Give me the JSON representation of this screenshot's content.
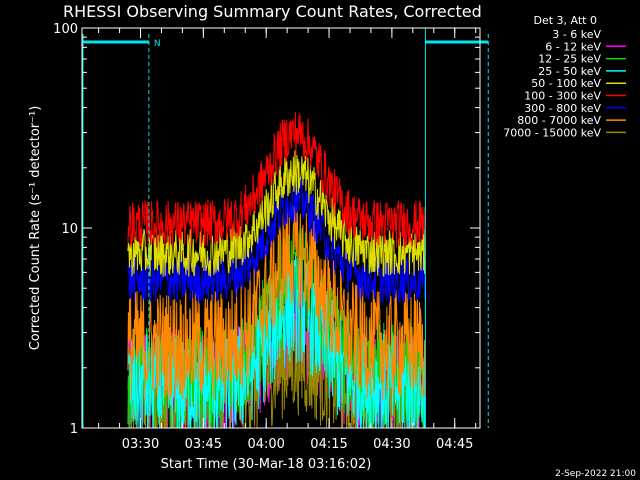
{
  "chart_data": {
    "type": "line",
    "title": "RHESSI Observing Summary Count Rates, Corrected",
    "xlabel": "Start Time (30-Mar-18 03:16:02)",
    "ylabel": "Corrected Count Rate (s⁻¹ detector⁻¹)",
    "yscale": "log",
    "ylim": [
      1,
      100
    ],
    "xlim_minutes_from_start": [
      0,
      95
    ],
    "y_ticks": [
      "1",
      "10",
      "100"
    ],
    "x_ticks": [
      "03:30",
      "03:45",
      "04:00",
      "04:15",
      "04:30",
      "04:45"
    ],
    "x_tick_values": [
      "03:30",
      "03:45",
      "04:00",
      "04:15",
      "04:30",
      "04:45"
    ],
    "legend_title": "Det 3, Att 0",
    "legend_position": "right",
    "date_stamp": "2-Sep-2022 21:00",
    "flags": {
      "bar_color": "#00e5ee",
      "night_label": "N",
      "night_interval": [
        "03:16",
        "03:32"
      ],
      "day_interval": [
        "04:38",
        "04:53"
      ]
    },
    "series": [
      {
        "name": "3 - 6 keV",
        "color": "#000000",
        "baseline": 1.6,
        "peak": 3.0
      },
      {
        "name": "6 - 12 keV",
        "color": "#ff00ff",
        "baseline": 1.7,
        "peak": 3.2
      },
      {
        "name": "12 - 25 keV",
        "color": "#00dd00",
        "baseline": 1.8,
        "peak": 5.5
      },
      {
        "name": "25 - 50 keV",
        "color": "#00ffff",
        "baseline": 1.6,
        "peak": 4.0
      },
      {
        "name": "50 - 100 keV",
        "color": "#dddd00",
        "baseline": 7.5,
        "peak": 19.0
      },
      {
        "name": "100 - 300 keV",
        "color": "#ff0000",
        "baseline": 10.5,
        "peak": 30.0
      },
      {
        "name": "300 - 800 keV",
        "color": "#0000ff",
        "baseline": 5.5,
        "peak": 14.0
      },
      {
        "name": "800 - 7000 keV",
        "color": "#ff8800",
        "baseline": 2.6,
        "peak": 7.5
      },
      {
        "name": "7000 - 15000 keV",
        "color": "#998800",
        "baseline": 1.5,
        "peak": 2.2
      }
    ],
    "data_interval": [
      "03:27",
      "04:38"
    ],
    "flare_peak_time": "04:07"
  }
}
